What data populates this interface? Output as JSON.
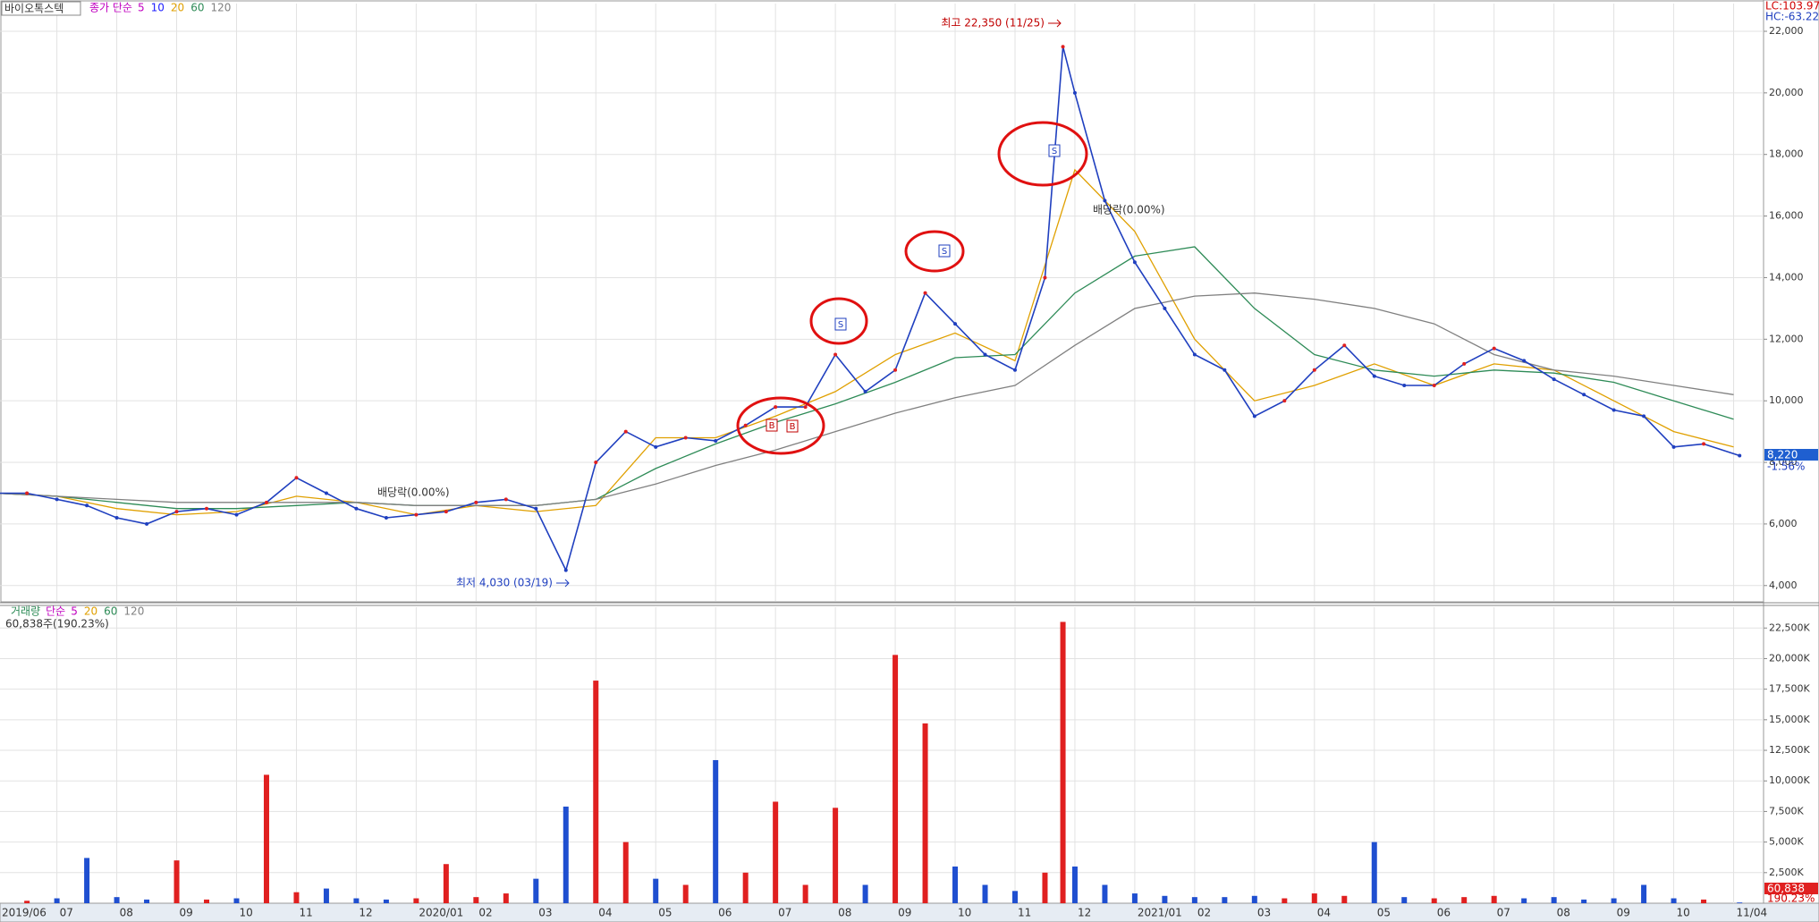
{
  "chart_data": [
    {
      "type": "line",
      "title": "바이오톡스텍",
      "ma_label": "종가 단순",
      "color": "#1f3fbf",
      "x": [
        0,
        0.5,
        1,
        1.5,
        2,
        2.5,
        3,
        3.5,
        4,
        4.5,
        5,
        5.5,
        6,
        6.5,
        7,
        7.5,
        8,
        8.5,
        9,
        9.5,
        10,
        10.5,
        11,
        11.5,
        12,
        12.5,
        13,
        13.5,
        14,
        14.5,
        15,
        15.5,
        16,
        16.5,
        17,
        17.5,
        17.8,
        18,
        18.5,
        19,
        19.5,
        20,
        20.5,
        21,
        21.5,
        22,
        22.5,
        23,
        23.5,
        24,
        24.5,
        25,
        25.5,
        26,
        26.5,
        27,
        27.5,
        28,
        28.5,
        29.1
      ],
      "values": [
        7000,
        7000,
        6800,
        6600,
        6200,
        6000,
        6400,
        6500,
        6300,
        6700,
        7500,
        7000,
        6500,
        6200,
        6300,
        6400,
        6700,
        6800,
        6500,
        4500,
        8000,
        9000,
        8500,
        8800,
        8700,
        9200,
        9800,
        9800,
        11500,
        10300,
        11000,
        13500,
        12500,
        11500,
        11000,
        14000,
        21500,
        20000,
        16500,
        14500,
        13000,
        11500,
        11000,
        9500,
        10000,
        11000,
        11800,
        10800,
        10500,
        10500,
        11200,
        11700,
        11300,
        10700,
        10200,
        9700,
        9500,
        8500,
        8600,
        8220
      ],
      "ma_series": [
        {
          "name": "5",
          "color": "#c000c0"
        },
        {
          "name": "10",
          "color": "#2020ff"
        },
        {
          "name": "20",
          "color": "#e0a000",
          "x": [
            0,
            1,
            2,
            3,
            4,
            5,
            6,
            7,
            8,
            9,
            10,
            11,
            12,
            13,
            14,
            15,
            16,
            17,
            18,
            19,
            20,
            21,
            22,
            23,
            24,
            25,
            26,
            27,
            28,
            29
          ],
          "values": [
            7000,
            6900,
            6500,
            6300,
            6400,
            6900,
            6700,
            6300,
            6600,
            6400,
            6600,
            8800,
            8800,
            9500,
            10300,
            11500,
            12200,
            11300,
            17500,
            15500,
            12000,
            10000,
            10500,
            11200,
            10500,
            11200,
            11000,
            10000,
            9000,
            8500
          ]
        },
        {
          "name": "60",
          "color": "#2e8b57",
          "x": [
            0,
            1,
            2,
            3,
            4,
            5,
            6,
            7,
            8,
            9,
            10,
            11,
            12,
            13,
            14,
            15,
            16,
            17,
            18,
            19,
            20,
            21,
            22,
            23,
            24,
            25,
            26,
            27,
            28,
            29
          ],
          "values": [
            7000,
            6900,
            6700,
            6500,
            6500,
            6600,
            6700,
            6600,
            6600,
            6600,
            6800,
            7800,
            8600,
            9300,
            9900,
            10600,
            11400,
            11500,
            13500,
            14700,
            15000,
            13000,
            11500,
            11000,
            10800,
            11000,
            10900,
            10600,
            10000,
            9400
          ]
        },
        {
          "name": "120",
          "color": "#808080",
          "x": [
            0,
            1,
            2,
            3,
            4,
            5,
            6,
            7,
            8,
            9,
            10,
            11,
            12,
            13,
            14,
            15,
            16,
            17,
            18,
            19,
            20,
            21,
            22,
            23,
            24,
            25,
            26,
            27,
            28,
            29
          ],
          "values": [
            7000,
            6900,
            6800,
            6700,
            6700,
            6700,
            6700,
            6600,
            6600,
            6600,
            6800,
            7300,
            7900,
            8400,
            9000,
            9600,
            10100,
            10500,
            11800,
            13000,
            13400,
            13500,
            13300,
            13000,
            12500,
            11500,
            11000,
            10800,
            10500,
            10200
          ]
        }
      ],
      "xlim": [
        0.05,
        29.5
      ],
      "ylim": [
        3500,
        22900
      ],
      "yticks": [
        {
          "value": 4000,
          "label": "4,000"
        },
        {
          "value": 6000,
          "label": "6,000"
        },
        {
          "value": 8000,
          "label": "8,000"
        },
        {
          "value": 10000,
          "label": "10,000"
        },
        {
          "value": 12000,
          "label": "12,000"
        },
        {
          "value": 14000,
          "label": "14,000"
        },
        {
          "value": 16000,
          "label": "16,000"
        },
        {
          "value": 18000,
          "label": "18,000"
        },
        {
          "value": 20000,
          "label": "20,000"
        },
        {
          "value": 22000,
          "label": "22,000"
        }
      ],
      "grid": true,
      "high_label": "최고 22,350 (11/25)",
      "low_label": "최저 4,030 (03/19)",
      "ex_dividend_labels": [
        "배당락(0.00%)",
        "배당락(0.00%)"
      ],
      "signal_labels": [
        "B",
        "B",
        "S",
        "S",
        "S"
      ],
      "last_price_label": "8,220",
      "last_change_label": "-1.56%",
      "lc_label": "LC:103.97",
      "hc_label": "HC:-63.22"
    },
    {
      "type": "bar",
      "title": "거래량",
      "ma_label": "단순",
      "colors": {
        "up": "#e02020",
        "down": "#1f4fd0"
      },
      "x": [
        0,
        0.5,
        1,
        1.5,
        2,
        2.5,
        3,
        3.5,
        4,
        4.5,
        5,
        5.5,
        6,
        6.5,
        7,
        7.5,
        8,
        8.5,
        9,
        9.5,
        10,
        10.5,
        11,
        11.5,
        12,
        12.5,
        13,
        13.5,
        14,
        14.5,
        15,
        15.5,
        16,
        16.5,
        17,
        17.5,
        17.8,
        18,
        18.5,
        19,
        19.5,
        20,
        20.5,
        21,
        21.5,
        22,
        22.5,
        23,
        23.5,
        24,
        24.5,
        25,
        25.5,
        26,
        26.5,
        27,
        27.5,
        28,
        28.5,
        29.1
      ],
      "values": [
        300000,
        200000,
        400000,
        3700000,
        500000,
        300000,
        3500000,
        300000,
        400000,
        10500000,
        900000,
        1200000,
        400000,
        300000,
        400000,
        3200000,
        500000,
        800000,
        2000000,
        7900000,
        18200000,
        5000000,
        2000000,
        1500000,
        11700000,
        2500000,
        8300000,
        1500000,
        7800000,
        1500000,
        20300000,
        14700000,
        3000000,
        1500000,
        1000000,
        2500000,
        23000000,
        3000000,
        1500000,
        800000,
        600000,
        500000,
        500000,
        600000,
        400000,
        800000,
        600000,
        5000000,
        500000,
        400000,
        500000,
        600000,
        400000,
        500000,
        300000,
        400000,
        1500000,
        400000,
        300000,
        60838
      ],
      "ma_series": [
        {
          "name": "5",
          "color": "#c000c0"
        },
        {
          "name": "20",
          "color": "#e0a000"
        },
        {
          "name": "60",
          "color": "#2e8b57"
        },
        {
          "name": "120",
          "color": "#808080"
        }
      ],
      "xlim": [
        0.05,
        29.5
      ],
      "ylim": [
        0,
        24200000
      ],
      "yticks": [
        {
          "value": 2500000,
          "label": "2,500K"
        },
        {
          "value": 5000000,
          "label": "5,000K"
        },
        {
          "value": 7500000,
          "label": "7,500K"
        },
        {
          "value": 10000000,
          "label": "10,000K"
        },
        {
          "value": 12500000,
          "label": "12,500K"
        },
        {
          "value": 15000000,
          "label": "15,000K"
        },
        {
          "value": 17500000,
          "label": "17,500K"
        },
        {
          "value": 20000000,
          "label": "20,000K"
        },
        {
          "value": 22500000,
          "label": "22,500K"
        }
      ],
      "xticks": [
        {
          "value": 0,
          "label": "2019/06"
        },
        {
          "value": 1,
          "label": "07"
        },
        {
          "value": 2,
          "label": "08"
        },
        {
          "value": 3,
          "label": "09"
        },
        {
          "value": 4,
          "label": "10"
        },
        {
          "value": 5,
          "label": "11"
        },
        {
          "value": 6,
          "label": "12"
        },
        {
          "value": 7,
          "label": "2020/01"
        },
        {
          "value": 8,
          "label": "02"
        },
        {
          "value": 9,
          "label": "03"
        },
        {
          "value": 10,
          "label": "04"
        },
        {
          "value": 11,
          "label": "05"
        },
        {
          "value": 12,
          "label": "06"
        },
        {
          "value": 13,
          "label": "07"
        },
        {
          "value": 14,
          "label": "08"
        },
        {
          "value": 15,
          "label": "09"
        },
        {
          "value": 16,
          "label": "10"
        },
        {
          "value": 17,
          "label": "11"
        },
        {
          "value": 18,
          "label": "12"
        },
        {
          "value": 19,
          "label": "2021/01"
        },
        {
          "value": 20,
          "label": "02"
        },
        {
          "value": 21,
          "label": "03"
        },
        {
          "value": 22,
          "label": "04"
        },
        {
          "value": 23,
          "label": "05"
        },
        {
          "value": 24,
          "label": "06"
        },
        {
          "value": 25,
          "label": "07"
        },
        {
          "value": 26,
          "label": "08"
        },
        {
          "value": 27,
          "label": "09"
        },
        {
          "value": 28,
          "label": "10"
        },
        {
          "value": 29,
          "label": "11/04"
        }
      ],
      "grid": true,
      "header_label": "60,838주(190.23%)",
      "last_volume_label": "60,838",
      "last_ratio_label": "190.23%"
    }
  ]
}
